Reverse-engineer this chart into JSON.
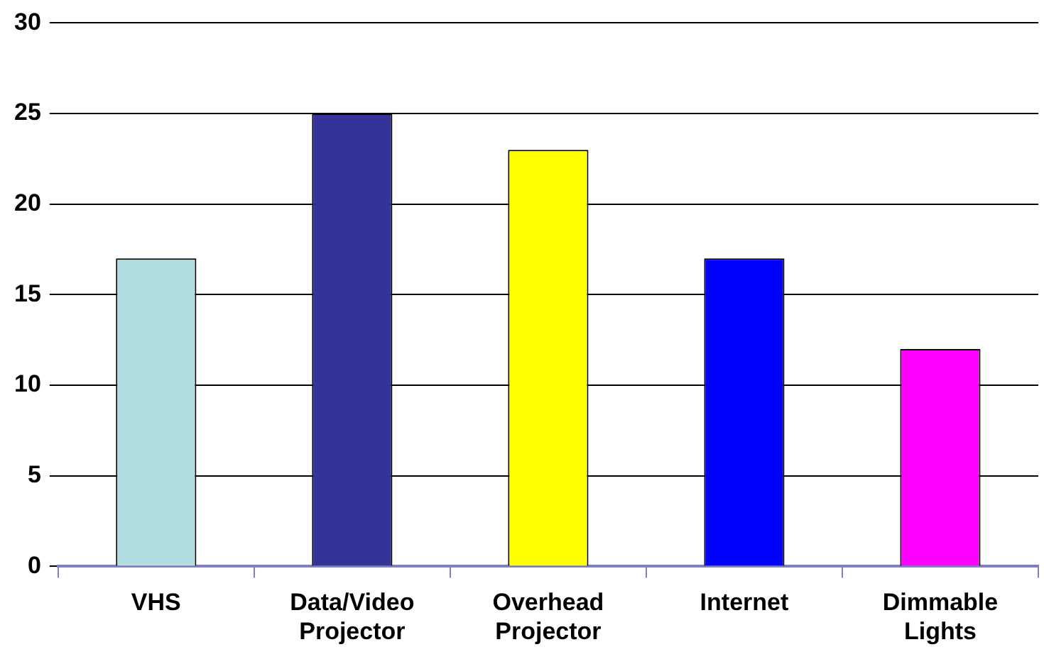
{
  "chart_data": {
    "type": "bar",
    "categories": [
      "VHS",
      "Data/Video Projector",
      "Overhead Projector",
      "Internet",
      "Dimmable Lights"
    ],
    "values": [
      17,
      25,
      23,
      17,
      12
    ],
    "colors": [
      "#b0dde0",
      "#333399",
      "#ffff00",
      "#0000ff",
      "#ff00ff"
    ],
    "ylim": [
      0,
      30
    ],
    "yticks": [
      0,
      5,
      10,
      15,
      20,
      25,
      30
    ],
    "grid": "y",
    "legend": false
  }
}
